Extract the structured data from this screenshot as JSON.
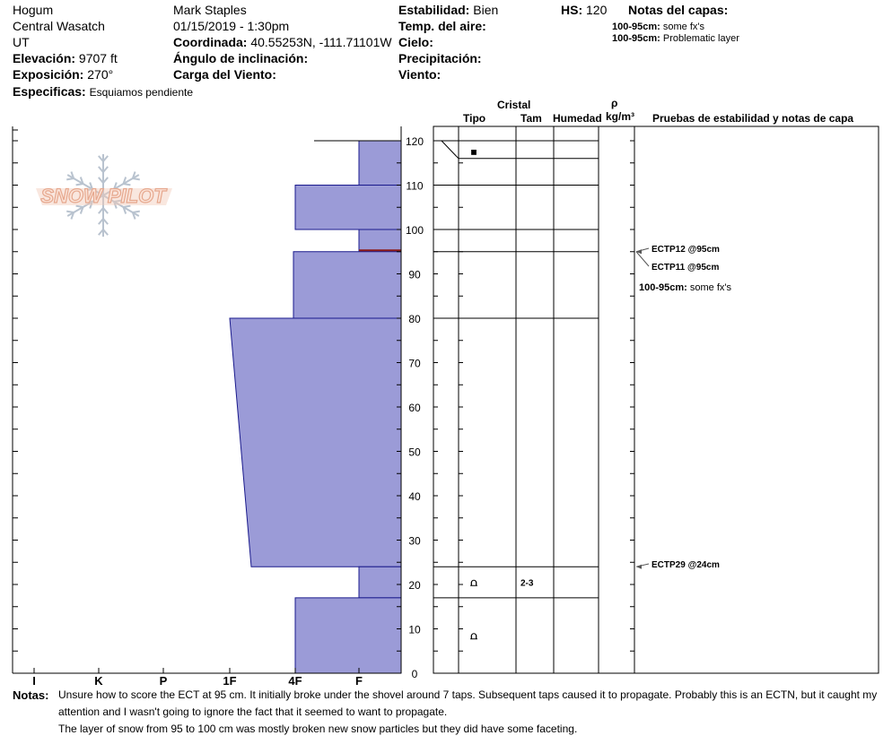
{
  "header": {
    "location": "Hogum",
    "range": "Central Wasatch",
    "state": "UT",
    "elevation_label": "Elevación:",
    "elevation": "9707 ft",
    "aspect_label": "Exposición:",
    "aspect": "270°",
    "specifics_label": "Especificas:",
    "specifics": "Esquiamos pendiente",
    "observer": "Mark Staples",
    "datetime": "01/15/2019 - 1:30pm",
    "coord_label": "Coordinada:",
    "coord": "40.55253N, -111.71101W",
    "slope_label": "Ángulo de inclinación:",
    "wind_load_label": "Carga del Viento:",
    "stability_label": "Estabilidad:",
    "stability": "Bien",
    "air_temp_label": "Temp. del aire:",
    "sky_label": "Cielo:",
    "precip_label": "Precipitación:",
    "wind_label": "Viento:",
    "hs_label": "HS:",
    "hs": "120",
    "layer_notes_title": "Notas del capas:",
    "layer_notes": [
      {
        "range": "100-95cm:",
        "text": "some fx's"
      },
      {
        "range": "100-95cm:",
        "text": "Problematic layer"
      }
    ]
  },
  "columns": {
    "cristal": "Cristal",
    "tipo": "Tipo",
    "tam": "Tam",
    "humedad": "Humedad",
    "rho": "ρ",
    "density_unit": "kg/m³",
    "tests_header": "Pruebas de estabilidad y notas de capa"
  },
  "logo": {
    "text": "SNOW PILOT"
  },
  "chart_data": {
    "type": "bar",
    "orientation": "horizontal",
    "hardness_axis": [
      "I",
      "K",
      "P",
      "1F",
      "4F",
      "F"
    ],
    "height_axis": {
      "min": 0,
      "max": 120,
      "ticks": [
        120,
        110,
        100,
        90,
        80,
        70,
        60,
        50,
        40,
        30,
        20,
        10,
        0
      ]
    },
    "layers": [
      {
        "top": 120,
        "bottom": 110,
        "hardness_top": "F",
        "hardness_bottom": "F"
      },
      {
        "top": 110,
        "bottom": 100,
        "hardness_top": "4F",
        "hardness_bottom": "4F"
      },
      {
        "top": 100,
        "bottom": 95,
        "hardness_top": "F",
        "hardness_bottom": "F"
      },
      {
        "top": 95,
        "bottom": 80,
        "hardness_top": "4F+",
        "hardness_bottom": "4F+"
      },
      {
        "top": 80,
        "bottom": 24,
        "hardness_top": "1F",
        "hardness_bottom": "1F-"
      },
      {
        "top": 24,
        "bottom": 17,
        "hardness_top": "F",
        "hardness_bottom": "F"
      },
      {
        "top": 17,
        "bottom": 0,
        "hardness_top": "4F",
        "hardness_bottom": "4F"
      }
    ],
    "layer_boundaries": [
      120,
      116,
      110,
      100,
      95,
      80,
      24,
      17,
      0
    ],
    "crystals": [
      {
        "height": 117.5,
        "symbol": "■",
        "size": ""
      },
      {
        "height": 20.5,
        "symbol": "⩍",
        "size": "2-3"
      },
      {
        "height": 8.5,
        "symbol": "⩍",
        "size": ""
      }
    ],
    "tests": [
      {
        "height": 95,
        "label": "ECTP12 @95cm"
      },
      {
        "height": 95,
        "label": "ECTP11 @95cm"
      },
      {
        "height": 24,
        "label": "ECTP29 @24cm"
      }
    ],
    "layer_comments": [
      {
        "range": "100-95cm:",
        "text": "some fx's"
      }
    ]
  },
  "notes": {
    "label": "Notas:",
    "lines": [
      "Unsure how to score the ECT at 95 cm. It initially broke under the shovel around 7 taps. Subsequent taps caused it to propagate. Probably this is an ECTN, but it caught my",
      "attention and I wasn't going to ignore the fact that it seemed to want to propagate.",
      "The layer of snow from 95 to 100 cm was mostly broken new snow particles but they did have some faceting."
    ]
  },
  "colors": {
    "fill": "#9b9bd7",
    "stroke": "#1a1a8c",
    "weak_layer": "#8b1a1a"
  }
}
